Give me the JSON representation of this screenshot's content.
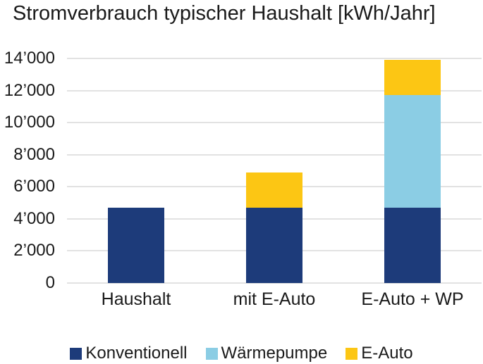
{
  "title": "Stromverbrauch typischer Haushalt [kWh/Jahr]",
  "colors": {
    "konventionell": "#1d3b7a",
    "waermepumpe": "#8bcde4",
    "eauto": "#fcc614",
    "gridline": "#e2e2e2",
    "text": "#1a1a1a",
    "background": "#ffffff"
  },
  "chart_data": {
    "type": "bar",
    "stacked": true,
    "title": "Stromverbrauch typischer Haushalt [kWh/Jahr]",
    "categories": [
      "Haushalt",
      "mit E-Auto",
      "E-Auto + WP"
    ],
    "series": [
      {
        "name": "Konventionell",
        "color": "#1d3b7a",
        "values": [
          4700,
          4700,
          4700
        ]
      },
      {
        "name": "Wärmepumpe",
        "color": "#8bcde4",
        "values": [
          0,
          0,
          7000
        ]
      },
      {
        "name": "E-Auto",
        "color": "#fcc614",
        "values": [
          0,
          2200,
          2200
        ]
      }
    ],
    "bar_totals": [
      4700,
      6900,
      13900
    ],
    "xlabel": "",
    "ylabel": "",
    "ylim": [
      0,
      14000
    ],
    "ytick_step": 2000,
    "ytick_labels": [
      "0",
      "2’000",
      "4’000",
      "6’000",
      "8’000",
      "10’000",
      "12’000",
      "14’000"
    ],
    "grid": true,
    "legend_position": "bottom",
    "legend_labels": [
      "Konventionell",
      "Wärmepumpe",
      "E-Auto"
    ]
  }
}
